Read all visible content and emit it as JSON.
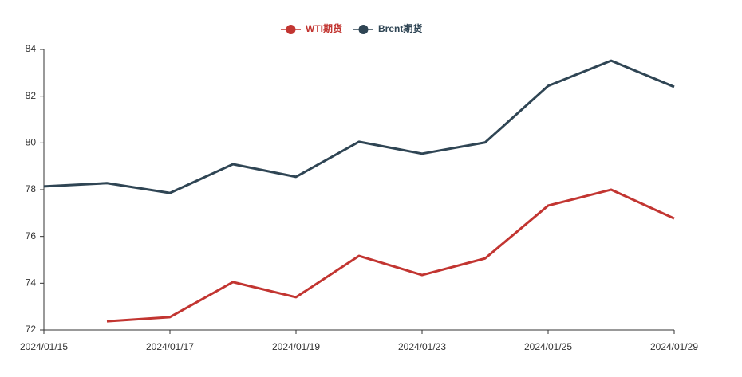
{
  "chart_data": {
    "type": "line",
    "categories": [
      "2024/01/15",
      null,
      "2024/01/17",
      null,
      "2024/01/19",
      null,
      "2024/01/23",
      null,
      "2024/01/25",
      null,
      "2024/01/29"
    ],
    "series": [
      {
        "name": "WTI期货",
        "color": "#c23531",
        "values": [
          null,
          72.37,
          72.55,
          74.05,
          73.4,
          75.17,
          74.35,
          75.06,
          77.32,
          78.0,
          76.77
        ]
      },
      {
        "name": "Brent期货",
        "color": "#2f4554",
        "values": [
          78.14,
          78.28,
          77.86,
          79.09,
          78.55,
          80.05,
          79.54,
          80.02,
          82.44,
          83.52,
          82.4
        ]
      }
    ],
    "ylim": [
      72,
      84
    ],
    "yticks": [
      72,
      74,
      76,
      78,
      80,
      82,
      84
    ],
    "grid": false,
    "legend": "top"
  }
}
